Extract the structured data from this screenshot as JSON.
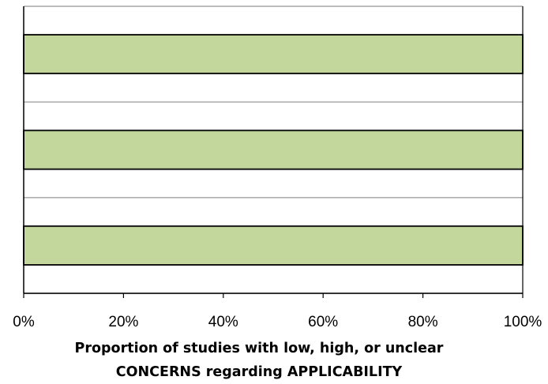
{
  "chart_data": {
    "type": "bar",
    "orientation": "horizontal",
    "stacked": true,
    "categories": [
      "",
      "",
      ""
    ],
    "series": [
      {
        "values": [
          100,
          100,
          100
        ],
        "color": "#c3d69b"
      }
    ],
    "xlabel": "Proportion of studies with low, high, or unclear",
    "xlabel_line2": "CONCERNS regarding APPLICABILITY",
    "xlim": [
      0,
      100
    ],
    "xticks": [
      "0%",
      "20%",
      "40%",
      "60%",
      "80%",
      "100%"
    ],
    "grid": true,
    "legend": "none"
  }
}
